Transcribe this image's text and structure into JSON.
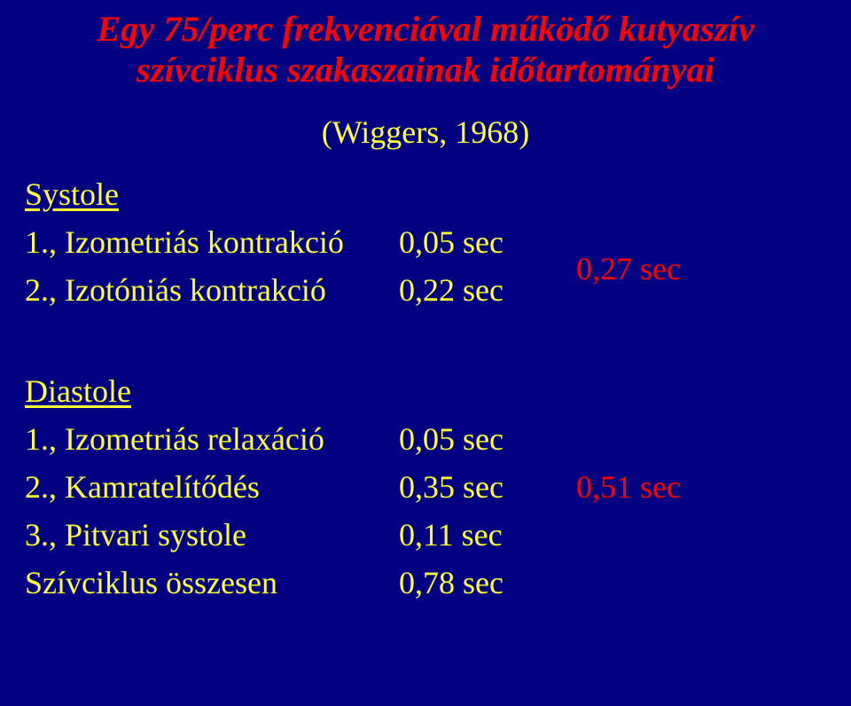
{
  "title_line1": "Egy 75/perc frekvenciával működő kutyaszív",
  "title_line2": "szívciklus szakaszainak időtartományai",
  "citation": "(Wiggers, 1968)",
  "systole": {
    "heading": "Systole",
    "rows": [
      {
        "label": "1., Izometriás kontrakció",
        "value": "0,05 sec"
      },
      {
        "label": "2., Izotóniás kontrakció",
        "value": "0,22 sec"
      }
    ],
    "total": "0,27 sec"
  },
  "diastole": {
    "heading": "Diastole",
    "rows": [
      {
        "label": "1., Izometriás relaxáció",
        "value": "0,05 sec"
      },
      {
        "label": "2., Kamratelítődés",
        "value": "0,35 sec"
      },
      {
        "label": "3., Pitvari systole",
        "value": "0,11 sec"
      }
    ],
    "total": "0,51 sec"
  },
  "grand_total": {
    "label": "Szívciklus összesen",
    "value": "0,78 sec"
  },
  "colors": {
    "background": "#000080",
    "title": "#ff0000",
    "text": "#ffff33",
    "totals": "#ff0000"
  },
  "fontsizes": {
    "title": 40,
    "body": 36
  }
}
